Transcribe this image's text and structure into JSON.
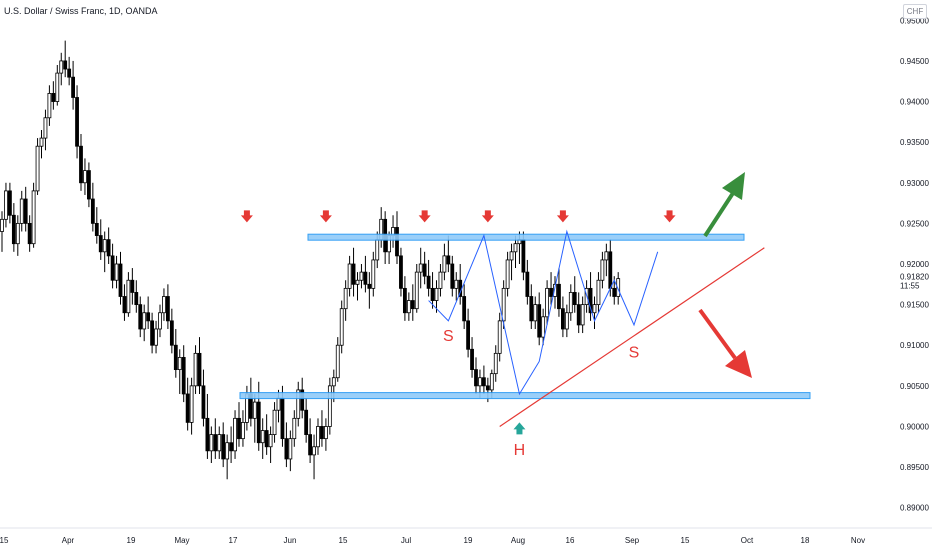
{
  "header": {
    "title": "U.S. Dollar / Swiss Franc, 1D, OANDA",
    "currency": "CHF"
  },
  "chart_data": {
    "type": "candlestick",
    "title": "U.S. Dollar / Swiss Franc, 1D, OANDA",
    "ylim": [
      0.8875,
      0.9525
    ],
    "y_ticks": [
      "0.95000",
      "0.94500",
      "0.94000",
      "0.93500",
      "0.93000",
      "0.92500",
      "0.92000",
      "0.91500",
      "0.91000",
      "0.90500",
      "0.90000",
      "0.89500",
      "0.89000"
    ],
    "x_ticks": [
      "15",
      "Apr",
      "19",
      "May",
      "17",
      "Jun",
      "15",
      "Jul",
      "19",
      "Aug",
      "16",
      "Sep",
      "15",
      "Oct",
      "18",
      "Nov"
    ],
    "last_price": {
      "value": "0.91820",
      "timer": "11:55"
    },
    "grid": false,
    "resistance_level": 0.9233,
    "support_level": 0.9038,
    "annotations": [
      {
        "label": "S",
        "date_index": 113,
        "price": 0.9105,
        "color": "#e53935"
      },
      {
        "label": "H",
        "date_index": 131,
        "price": 0.8965,
        "color": "#e53935"
      },
      {
        "label": "S",
        "date_index": 160,
        "price": 0.9085,
        "color": "#e53935"
      }
    ],
    "down_arrows": [
      {
        "date_index": 62,
        "price": 0.9255
      },
      {
        "date_index": 82,
        "price": 0.9255
      },
      {
        "date_index": 107,
        "price": 0.9255
      },
      {
        "date_index": 123,
        "price": 0.9255
      },
      {
        "date_index": 142,
        "price": 0.9255
      },
      {
        "date_index": 169,
        "price": 0.9255
      }
    ],
    "series": [
      {
        "name": "",
        "ohlc": [
          [
            0.924,
            0.9265,
            0.9215,
            0.9255
          ],
          [
            0.9255,
            0.93,
            0.9245,
            0.929
          ],
          [
            0.929,
            0.93,
            0.925,
            0.926
          ],
          [
            0.926,
            0.9275,
            0.9215,
            0.9225
          ],
          [
            0.9225,
            0.926,
            0.921,
            0.925
          ],
          [
            0.925,
            0.929,
            0.924,
            0.928
          ],
          [
            0.928,
            0.9295,
            0.924,
            0.925
          ],
          [
            0.925,
            0.926,
            0.9215,
            0.9225
          ],
          [
            0.9225,
            0.93,
            0.922,
            0.929
          ],
          [
            0.929,
            0.9355,
            0.9285,
            0.9345
          ],
          [
            0.9345,
            0.9365,
            0.933,
            0.9355
          ],
          [
            0.9355,
            0.939,
            0.934,
            0.938
          ],
          [
            0.938,
            0.942,
            0.937,
            0.941
          ],
          [
            0.941,
            0.9425,
            0.939,
            0.94
          ],
          [
            0.94,
            0.9445,
            0.9395,
            0.9435
          ],
          [
            0.9435,
            0.946,
            0.942,
            0.945
          ],
          [
            0.945,
            0.9475,
            0.943,
            0.944
          ],
          [
            0.944,
            0.9455,
            0.942,
            0.943
          ],
          [
            0.943,
            0.945,
            0.939,
            0.9405
          ],
          [
            0.9405,
            0.942,
            0.933,
            0.9345
          ],
          [
            0.9345,
            0.936,
            0.929,
            0.93
          ],
          [
            0.93,
            0.933,
            0.9285,
            0.9315
          ],
          [
            0.9315,
            0.9325,
            0.927,
            0.928
          ],
          [
            0.928,
            0.93,
            0.924,
            0.925
          ],
          [
            0.925,
            0.927,
            0.9225,
            0.9235
          ],
          [
            0.9235,
            0.9255,
            0.9205,
            0.9215
          ],
          [
            0.9215,
            0.924,
            0.919,
            0.923
          ],
          [
            0.923,
            0.9245,
            0.92,
            0.921
          ],
          [
            0.921,
            0.9225,
            0.917,
            0.918
          ],
          [
            0.918,
            0.921,
            0.917,
            0.92
          ],
          [
            0.92,
            0.9215,
            0.915,
            0.916
          ],
          [
            0.916,
            0.9175,
            0.913,
            0.914
          ],
          [
            0.914,
            0.919,
            0.9135,
            0.918
          ],
          [
            0.918,
            0.9195,
            0.915,
            0.9165
          ],
          [
            0.9165,
            0.918,
            0.914,
            0.915
          ],
          [
            0.915,
            0.916,
            0.911,
            0.912
          ],
          [
            0.912,
            0.915,
            0.9105,
            0.914
          ],
          [
            0.914,
            0.916,
            0.912,
            0.913
          ],
          [
            0.913,
            0.914,
            0.909,
            0.91
          ],
          [
            0.91,
            0.913,
            0.909,
            0.912
          ],
          [
            0.912,
            0.915,
            0.911,
            0.914
          ],
          [
            0.914,
            0.917,
            0.913,
            0.916
          ],
          [
            0.916,
            0.9175,
            0.912,
            0.913
          ],
          [
            0.913,
            0.9145,
            0.909,
            0.91
          ],
          [
            0.91,
            0.912,
            0.906,
            0.907
          ],
          [
            0.907,
            0.9095,
            0.904,
            0.9085
          ],
          [
            0.9085,
            0.91,
            0.903,
            0.904
          ],
          [
            0.904,
            0.906,
            0.8995,
            0.9005
          ],
          [
            0.9005,
            0.906,
            0.899,
            0.905
          ],
          [
            0.905,
            0.91,
            0.904,
            0.909
          ],
          [
            0.909,
            0.911,
            0.904,
            0.905
          ],
          [
            0.905,
            0.907,
            0.9,
            0.901
          ],
          [
            0.901,
            0.904,
            0.896,
            0.897
          ],
          [
            0.897,
            0.9,
            0.8955,
            0.899
          ],
          [
            0.899,
            0.901,
            0.896,
            0.897
          ],
          [
            0.897,
            0.9,
            0.896,
            0.899
          ],
          [
            0.899,
            0.9005,
            0.895,
            0.896
          ],
          [
            0.896,
            0.899,
            0.8935,
            0.898
          ],
          [
            0.898,
            0.9,
            0.8955,
            0.897
          ],
          [
            0.897,
            0.902,
            0.896,
            0.901
          ],
          [
            0.901,
            0.903,
            0.8975,
            0.8985
          ],
          [
            0.8985,
            0.902,
            0.8975,
            0.9005
          ],
          [
            0.9005,
            0.905,
            0.8995,
            0.904
          ],
          [
            0.904,
            0.906,
            0.9,
            0.901
          ],
          [
            0.901,
            0.904,
            0.898,
            0.903
          ],
          [
            0.903,
            0.9055,
            0.897,
            0.898
          ],
          [
            0.898,
            0.901,
            0.896,
            0.8995
          ],
          [
            0.8995,
            0.9015,
            0.8965,
            0.8975
          ],
          [
            0.8975,
            0.9,
            0.8955,
            0.899
          ],
          [
            0.899,
            0.903,
            0.898,
            0.902
          ],
          [
            0.902,
            0.9045,
            0.9005,
            0.9035
          ],
          [
            0.9035,
            0.905,
            0.8975,
            0.8985
          ],
          [
            0.8985,
            0.9005,
            0.895,
            0.896
          ],
          [
            0.896,
            0.8995,
            0.8945,
            0.8985
          ],
          [
            0.8985,
            0.902,
            0.8975,
            0.901
          ],
          [
            0.901,
            0.9055,
            0.9,
            0.9045
          ],
          [
            0.9045,
            0.906,
            0.901,
            0.902
          ],
          [
            0.902,
            0.9035,
            0.898,
            0.899
          ],
          [
            0.899,
            0.901,
            0.8955,
            0.8965
          ],
          [
            0.8965,
            0.899,
            0.8935,
            0.8975
          ],
          [
            0.8975,
            0.901,
            0.8965,
            0.9
          ],
          [
            0.9,
            0.902,
            0.8975,
            0.8985
          ],
          [
            0.8985,
            0.901,
            0.897,
            0.9
          ],
          [
            0.9,
            0.906,
            0.899,
            0.905
          ],
          [
            0.905,
            0.907,
            0.903,
            0.906
          ],
          [
            0.906,
            0.911,
            0.9055,
            0.91
          ],
          [
            0.91,
            0.9155,
            0.909,
            0.9145
          ],
          [
            0.9145,
            0.918,
            0.913,
            0.917
          ],
          [
            0.917,
            0.921,
            0.916,
            0.92
          ],
          [
            0.92,
            0.922,
            0.916,
            0.9175
          ],
          [
            0.9175,
            0.919,
            0.9155,
            0.918
          ],
          [
            0.918,
            0.92,
            0.917,
            0.919
          ],
          [
            0.919,
            0.921,
            0.9165,
            0.9175
          ],
          [
            0.9175,
            0.919,
            0.9145,
            0.917
          ],
          [
            0.917,
            0.9215,
            0.916,
            0.9205
          ],
          [
            0.9205,
            0.924,
            0.9195,
            0.923
          ],
          [
            0.923,
            0.927,
            0.922,
            0.9255
          ],
          [
            0.9255,
            0.9265,
            0.92,
            0.9215
          ],
          [
            0.9215,
            0.924,
            0.92,
            0.9235
          ],
          [
            0.9235,
            0.926,
            0.922,
            0.9245
          ],
          [
            0.9245,
            0.9265,
            0.92,
            0.921
          ],
          [
            0.921,
            0.922,
            0.916,
            0.917
          ],
          [
            0.917,
            0.9185,
            0.913,
            0.914
          ],
          [
            0.914,
            0.9165,
            0.913,
            0.9155
          ],
          [
            0.9155,
            0.9175,
            0.913,
            0.9145
          ],
          [
            0.9145,
            0.92,
            0.914,
            0.919
          ],
          [
            0.919,
            0.922,
            0.917,
            0.92
          ],
          [
            0.92,
            0.9215,
            0.9175,
            0.9185
          ],
          [
            0.9185,
            0.9205,
            0.916,
            0.917
          ],
          [
            0.917,
            0.919,
            0.9145,
            0.9155
          ],
          [
            0.9155,
            0.918,
            0.914,
            0.917
          ],
          [
            0.917,
            0.92,
            0.916,
            0.919
          ],
          [
            0.919,
            0.9225,
            0.918,
            0.921
          ],
          [
            0.921,
            0.9235,
            0.919,
            0.92
          ],
          [
            0.92,
            0.921,
            0.916,
            0.917
          ],
          [
            0.917,
            0.919,
            0.9155,
            0.918
          ],
          [
            0.918,
            0.92,
            0.915,
            0.916
          ],
          [
            0.916,
            0.9175,
            0.912,
            0.913
          ],
          [
            0.913,
            0.9145,
            0.9085,
            0.9095
          ],
          [
            0.9095,
            0.911,
            0.906,
            0.907
          ],
          [
            0.907,
            0.9085,
            0.904,
            0.905
          ],
          [
            0.905,
            0.907,
            0.9035,
            0.906
          ],
          [
            0.906,
            0.9075,
            0.904,
            0.905
          ],
          [
            0.905,
            0.906,
            0.903,
            0.9045
          ],
          [
            0.9045,
            0.907,
            0.9035,
            0.9065
          ],
          [
            0.9065,
            0.91,
            0.9055,
            0.909
          ],
          [
            0.909,
            0.914,
            0.908,
            0.913
          ],
          [
            0.913,
            0.918,
            0.912,
            0.917
          ],
          [
            0.917,
            0.9215,
            0.916,
            0.9205
          ],
          [
            0.9205,
            0.9225,
            0.918,
            0.9215
          ],
          [
            0.9215,
            0.9235,
            0.9195,
            0.9225
          ],
          [
            0.9225,
            0.924,
            0.92,
            0.923
          ],
          [
            0.923,
            0.924,
            0.918,
            0.919
          ],
          [
            0.919,
            0.9205,
            0.915,
            0.916
          ],
          [
            0.916,
            0.9175,
            0.912,
            0.913
          ],
          [
            0.913,
            0.916,
            0.912,
            0.915
          ],
          [
            0.915,
            0.9165,
            0.91,
            0.911
          ],
          [
            0.911,
            0.9145,
            0.91,
            0.9135
          ],
          [
            0.9135,
            0.918,
            0.9125,
            0.917
          ],
          [
            0.917,
            0.919,
            0.915,
            0.916
          ],
          [
            0.916,
            0.9185,
            0.9145,
            0.9175
          ],
          [
            0.9175,
            0.9195,
            0.9135,
            0.9145
          ],
          [
            0.9145,
            0.916,
            0.911,
            0.912
          ],
          [
            0.912,
            0.915,
            0.911,
            0.914
          ],
          [
            0.914,
            0.9175,
            0.913,
            0.9165
          ],
          [
            0.9165,
            0.9185,
            0.914,
            0.915
          ],
          [
            0.915,
            0.9165,
            0.9115,
            0.9125
          ],
          [
            0.9125,
            0.916,
            0.9115,
            0.915
          ],
          [
            0.915,
            0.918,
            0.914,
            0.917
          ],
          [
            0.917,
            0.919,
            0.913,
            0.914
          ],
          [
            0.914,
            0.916,
            0.912,
            0.915
          ],
          [
            0.915,
            0.919,
            0.914,
            0.918
          ],
          [
            0.918,
            0.9215,
            0.917,
            0.9205
          ],
          [
            0.9205,
            0.9225,
            0.9185,
            0.9215
          ],
          [
            0.9215,
            0.923,
            0.916,
            0.917
          ],
          [
            0.917,
            0.9185,
            0.915,
            0.916
          ],
          [
            0.916,
            0.919,
            0.915,
            0.9182
          ]
        ]
      }
    ]
  }
}
